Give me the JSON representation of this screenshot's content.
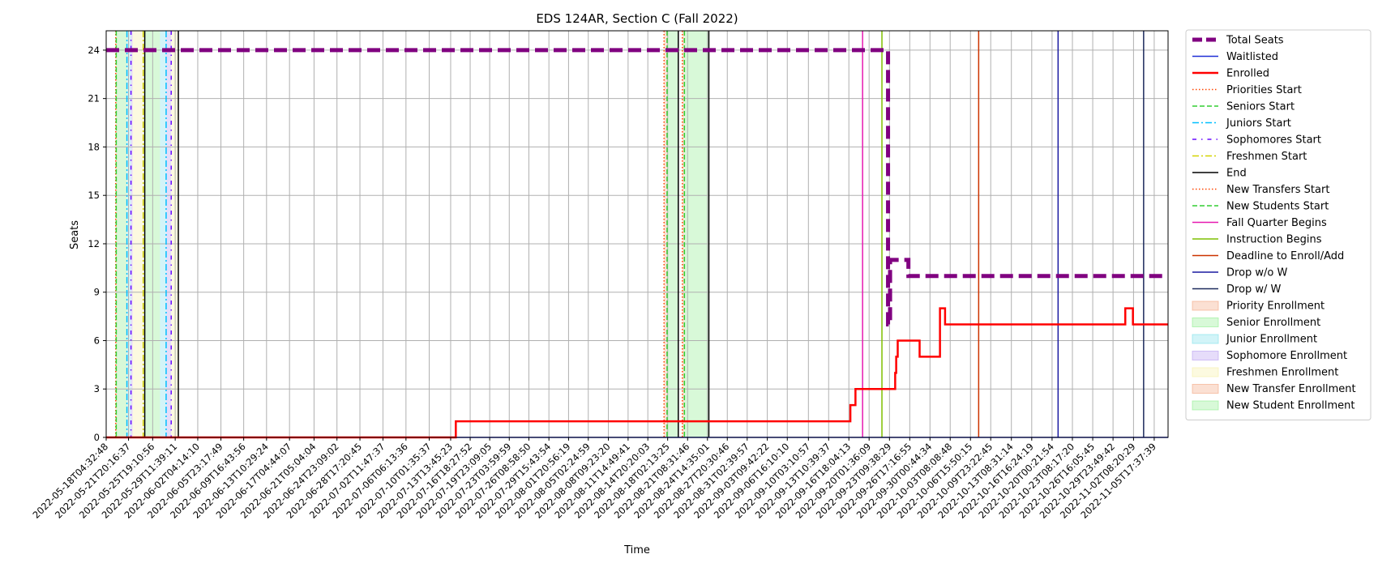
{
  "chart_data": {
    "type": "line",
    "title": "EDS 124AR, Section C (Fall 2022)",
    "xlabel": "Time",
    "ylabel": "Seats",
    "ylim": [
      0,
      25.2
    ],
    "xlim": [
      "2022-05-18T04:32:48",
      "2022-11-08T00:00:00"
    ],
    "yticks": [
      0,
      3,
      6,
      9,
      12,
      15,
      18,
      21,
      24
    ],
    "grid": true,
    "legend_position": "outside-right",
    "xtick_labels": [
      "2022-05-18T04:32:48",
      "2022-05-21T20:16:37",
      "2022-05-25T19:10:56",
      "2022-05-29T11:39:11",
      "2022-06-02T04:14:10",
      "2022-06-05T23:17:49",
      "2022-06-09T16:43:56",
      "2022-06-13T10:29:24",
      "2022-06-17T04:44:07",
      "2022-06-21T05:04:04",
      "2022-06-24T23:09:02",
      "2022-06-28T17:20:45",
      "2022-07-02T11:47:37",
      "2022-07-06T06:13:36",
      "2022-07-10T01:35:37",
      "2022-07-13T13:45:23",
      "2022-07-16T18:27:52",
      "2022-07-19T23:09:05",
      "2022-07-23T03:59:59",
      "2022-07-26T08:58:50",
      "2022-07-29T15:43:54",
      "2022-08-01T20:56:19",
      "2022-08-05T02:24:59",
      "2022-08-08T09:23:20",
      "2022-08-11T14:49:41",
      "2022-08-14T20:20:03",
      "2022-08-18T02:13:25",
      "2022-08-21T08:31:46",
      "2022-08-24T14:35:01",
      "2022-08-27T20:30:46",
      "2022-08-31T02:39:57",
      "2022-09-03T09:42:22",
      "2022-09-06T16:10:10",
      "2022-09-10T03:10:57",
      "2022-09-13T10:39:37",
      "2022-09-16T18:04:13",
      "2022-09-20T01:36:09",
      "2022-09-23T09:38:29",
      "2022-09-26T17:16:55",
      "2022-09-30T00:44:34",
      "2022-10-03T08:08:48",
      "2022-10-06T15:50:15",
      "2022-10-09T23:22:45",
      "2022-10-13T08:31:14",
      "2022-10-16T16:24:19",
      "2022-10-20T00:21:54",
      "2022-10-23T08:17:20",
      "2022-10-26T16:05:45",
      "2022-10-29T23:49:42",
      "2022-11-02T08:20:29",
      "2022-11-05T17:37:39"
    ],
    "series": [
      {
        "name": "Total Seats",
        "color": "#800080",
        "style": "dashed-thick",
        "points": [
          [
            "2022-05-18T04:32:48",
            24
          ],
          [
            "2022-09-23T04:00:00",
            24
          ],
          [
            "2022-09-23T04:00:00",
            7
          ],
          [
            "2022-09-23T12:00:00",
            7
          ],
          [
            "2022-09-23T12:00:00",
            11
          ],
          [
            "2022-09-26T12:00:00",
            11
          ],
          [
            "2022-09-26T12:00:00",
            10
          ],
          [
            "2022-11-08T00:00:00",
            10
          ]
        ]
      },
      {
        "name": "Waitlisted",
        "color": "#1f2fd6",
        "style": "solid",
        "points": [
          [
            "2022-05-18T04:32:48",
            0
          ],
          [
            "2022-11-08T00:00:00",
            0
          ]
        ]
      },
      {
        "name": "Enrolled",
        "color": "#ff0000",
        "style": "solid-thick",
        "points": [
          [
            "2022-05-18T04:32:48",
            0
          ],
          [
            "2022-07-14T10:00:00",
            0
          ],
          [
            "2022-07-14T10:00:00",
            1
          ],
          [
            "2022-09-17T00:00:00",
            1
          ],
          [
            "2022-09-17T00:00:00",
            2
          ],
          [
            "2022-09-17T20:00:00",
            2
          ],
          [
            "2022-09-17T20:00:00",
            3
          ],
          [
            "2022-09-24T08:00:00",
            3
          ],
          [
            "2022-09-24T08:00:00",
            4
          ],
          [
            "2022-09-24T12:00:00",
            4
          ],
          [
            "2022-09-24T12:00:00",
            5
          ],
          [
            "2022-09-24T18:00:00",
            5
          ],
          [
            "2022-09-24T18:00:00",
            6
          ],
          [
            "2022-09-28T08:00:00",
            6
          ],
          [
            "2022-09-28T08:00:00",
            5
          ],
          [
            "2022-10-01T16:00:00",
            5
          ],
          [
            "2022-10-01T16:00:00",
            8
          ],
          [
            "2022-10-02T12:00:00",
            8
          ],
          [
            "2022-10-02T12:00:00",
            7
          ],
          [
            "2022-11-01T00:00:00",
            7
          ],
          [
            "2022-11-01T00:00:00",
            8
          ],
          [
            "2022-11-02T06:00:00",
            8
          ],
          [
            "2022-11-02T06:00:00",
            7
          ],
          [
            "2022-11-08T00:00:00",
            7
          ]
        ]
      }
    ],
    "event_lines": [
      {
        "name": "Priorities Start",
        "color": "#ff4500",
        "style": "dotted",
        "x": [
          "2022-05-19T18:00:00",
          "2022-08-17T12:00:00",
          "2022-08-20T12:00:00"
        ]
      },
      {
        "name": "Seniors Start",
        "color": "#32cd32",
        "style": "dashed",
        "x": [
          "2022-05-19T20:00:00",
          "2022-08-18T00:00:00"
        ]
      },
      {
        "name": "Juniors Start",
        "color": "#00bfff",
        "style": "dashdot",
        "x": [
          "2022-05-21T14:00:00",
          "2022-05-28T00:00:00"
        ]
      },
      {
        "name": "Sophomores Start",
        "color": "#6a0dff",
        "style": "dashdot-dense",
        "x": [
          "2022-05-22T06:00:00",
          "2022-05-28T20:00:00"
        ]
      },
      {
        "name": "Freshmen Start",
        "color": "#d4d400",
        "style": "dashdot",
        "x": [
          "2022-05-24T06:00:00"
        ]
      },
      {
        "name": "End",
        "color": "#000000",
        "style": "solid",
        "x": [
          "2022-05-24T12:00:00",
          "2022-05-30T00:00:00",
          "2022-08-19T20:00:00",
          "2022-08-24T20:00:00"
        ]
      },
      {
        "name": "New Transfers Start",
        "color": "#ff4500",
        "style": "dotted",
        "x": []
      },
      {
        "name": "New Students Start",
        "color": "#32cd32",
        "style": "dashed",
        "x": [
          "2022-08-20T20:00:00"
        ]
      },
      {
        "name": "Fall Quarter Begins",
        "color": "#e619b0",
        "style": "solid",
        "x": [
          "2022-09-19T00:00:00"
        ]
      },
      {
        "name": "Instruction Begins",
        "color": "#7fbf00",
        "style": "solid",
        "x": [
          "2022-09-22T04:00:00"
        ]
      },
      {
        "name": "Deadline to Enroll/Add",
        "color": "#cc3300",
        "style": "solid",
        "x": [
          "2022-10-08T00:00:00"
        ]
      },
      {
        "name": "Drop w/o W",
        "color": "#1a1aa0",
        "style": "solid",
        "x": [
          "2022-10-21T00:00:00"
        ]
      },
      {
        "name": "Drop w/ W",
        "color": "#1c2a5c",
        "style": "solid",
        "x": [
          "2022-11-04T00:00:00"
        ]
      }
    ],
    "enrollment_periods": [
      {
        "name": "Priority Enrollment",
        "color": "#f4a582",
        "spans": [
          [
            "2022-05-19T18:00:00",
            "2022-05-19T20:00:00"
          ],
          [
            "2022-08-17T12:00:00",
            "2022-08-18T00:00:00"
          ]
        ]
      },
      {
        "name": "Senior Enrollment",
        "color": "#90ee90",
        "spans": [
          [
            "2022-05-19T20:00:00",
            "2022-05-21T14:00:00"
          ],
          [
            "2022-05-24T12:00:00",
            "2022-05-27T00:00:00"
          ],
          [
            "2022-08-18T00:00:00",
            "2022-08-19T20:00:00"
          ]
        ]
      },
      {
        "name": "Junior Enrollment",
        "color": "#7fe0ea",
        "spans": [
          [
            "2022-05-21T14:00:00",
            "2022-05-22T06:00:00"
          ],
          [
            "2022-05-27T00:00:00",
            "2022-05-28T00:00:00"
          ]
        ]
      },
      {
        "name": "Sophomore Enrollment",
        "color": "#b69cf0",
        "spans": [
          [
            "2022-05-22T06:00:00",
            "2022-05-22T12:00:00"
          ],
          [
            "2022-05-28T00:00:00",
            "2022-05-28T20:00:00"
          ]
        ]
      },
      {
        "name": "Freshmen Enrollment",
        "color": "#f5f0a6",
        "spans": [
          [
            "2022-05-22T12:00:00",
            "2022-05-24T06:00:00"
          ],
          [
            "2022-05-28T20:00:00",
            "2022-05-30T00:00:00"
          ]
        ]
      },
      {
        "name": "New Transfer Enrollment",
        "color": "#f4a582",
        "spans": [
          [
            "2022-08-20T12:00:00",
            "2022-08-20T20:00:00"
          ]
        ]
      },
      {
        "name": "New Student Enrollment",
        "color": "#90ee90",
        "spans": [
          [
            "2022-08-20T20:00:00",
            "2022-08-24T20:00:00"
          ]
        ]
      }
    ]
  }
}
